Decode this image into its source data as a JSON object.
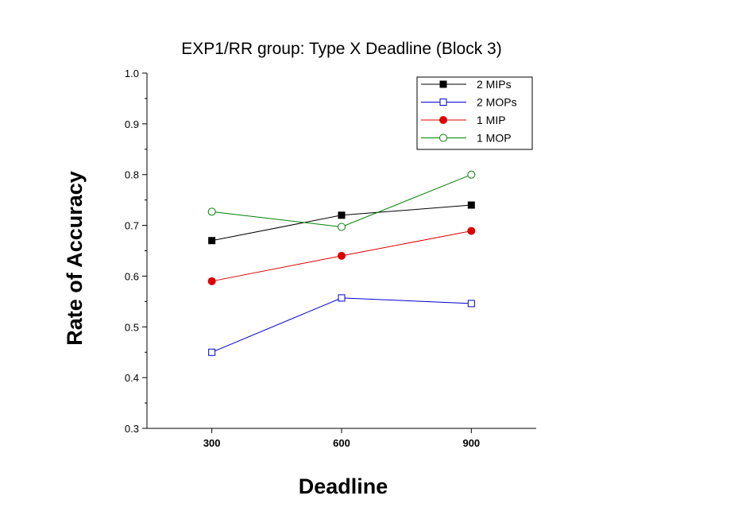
{
  "chart_data": {
    "type": "line",
    "title": "EXP1/RR group: Type X Deadline (Block 3)",
    "xlabel": "Deadline",
    "ylabel": "Rate of Accuracy",
    "categories": [
      "300",
      "600",
      "900"
    ],
    "x": [
      300,
      600,
      900
    ],
    "xlim": [
      150,
      1050
    ],
    "ylim": [
      0.3,
      1.0
    ],
    "yticks": [
      "0.3",
      "0.4",
      "0.5",
      "0.6",
      "0.7",
      "0.8",
      "0.9",
      "1.0"
    ],
    "grid": false,
    "legend_position": "top-right",
    "series": [
      {
        "name": "2 MIPs",
        "color": "#000000",
        "marker": "square-filled",
        "values": [
          0.67,
          0.72,
          0.74
        ]
      },
      {
        "name": "2 MOPs",
        "color": "#0000cc",
        "marker": "square-open",
        "values": [
          0.45,
          0.557,
          0.546
        ]
      },
      {
        "name": "1 MIP",
        "color": "#dd0000",
        "marker": "circle-filled",
        "values": [
          0.59,
          0.64,
          0.689
        ]
      },
      {
        "name": "1 MOP",
        "color": "#008000",
        "marker": "circle-open",
        "values": [
          0.727,
          0.697,
          0.8
        ]
      }
    ]
  }
}
